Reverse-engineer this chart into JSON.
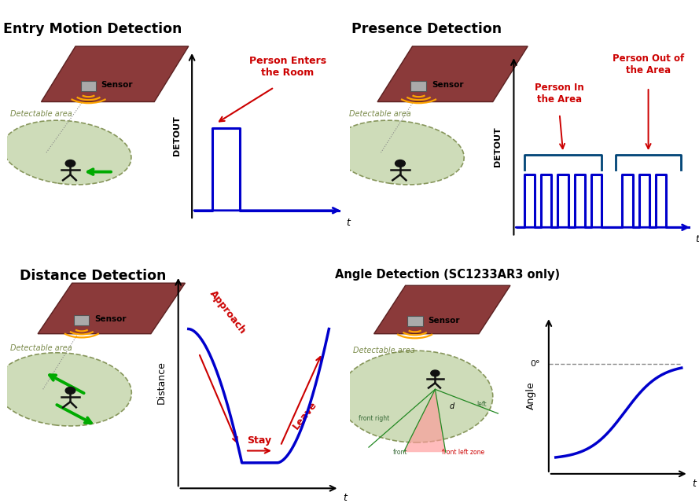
{
  "wall_color": "#8B3A3A",
  "wall_edge": "#5A2020",
  "sensor_color": "#AAAAAA",
  "sensor_edge": "#555555",
  "area_face": "#C8D8B0",
  "area_edge": "#7A8A4A",
  "wave_color": "#FFA500",
  "blue": "#0000CC",
  "red": "#CC0000",
  "green": "#00AA00",
  "dark_teal": "#004477",
  "person_color": "#111111",
  "gray": "#888888",
  "panel_titles": [
    "Entry Motion Detection",
    "Presence Detection",
    "Distance Detection",
    "Angle Detection (SC1233AR3 only)"
  ],
  "detectable_label": "Detectable area"
}
